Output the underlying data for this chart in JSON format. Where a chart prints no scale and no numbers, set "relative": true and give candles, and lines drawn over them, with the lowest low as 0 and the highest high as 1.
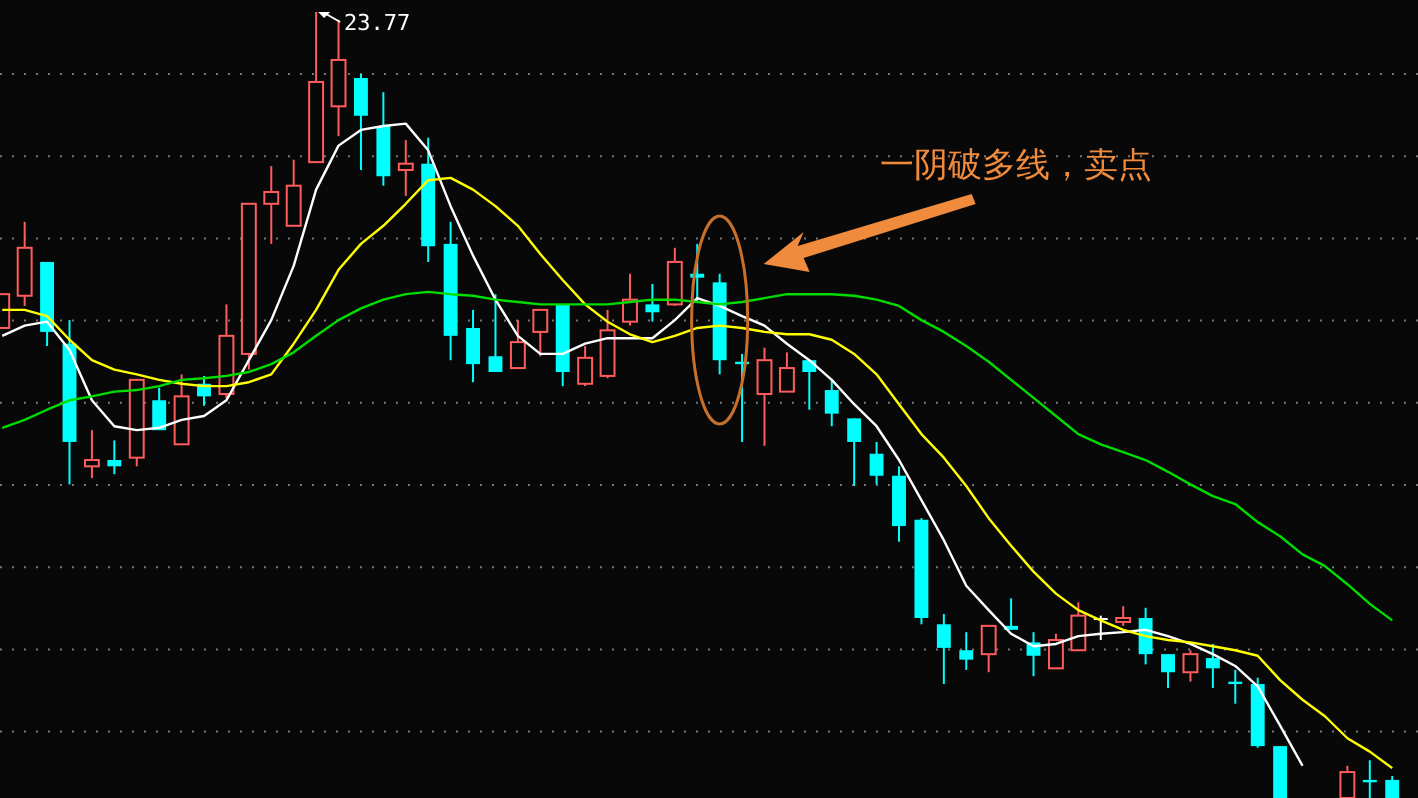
{
  "chart_data": {
    "type": "candlestick",
    "relative": true,
    "grid": "y",
    "marker": "none",
    "categories": [
      null,
      null,
      null,
      null,
      null,
      null,
      null,
      null,
      null,
      null,
      null,
      null,
      null,
      null,
      null,
      null,
      null,
      null,
      null,
      null,
      null,
      null,
      null,
      null,
      null,
      null,
      null,
      null,
      null,
      null,
      null,
      null,
      null,
      null,
      null,
      null,
      null,
      null,
      null,
      null,
      null,
      null,
      null,
      null,
      null,
      null,
      null,
      null,
      null,
      null,
      null,
      null,
      null,
      null,
      null,
      null,
      null,
      null,
      null,
      null,
      null,
      null,
      null
    ],
    "colors": [
      "#ff5c5c",
      "#ff5c5c",
      "#00ffff",
      "#00ffff",
      "#ff5c5c",
      "#00ffff",
      "#ff5c5c",
      "#00ffff",
      "#ff5c5c",
      "#00ffff",
      "#ff5c5c",
      "#ff5c5c",
      "#ff5c5c",
      "#ff5c5c",
      "#ff5c5c",
      "#ff5c5c",
      "#00ffff",
      "#00ffff",
      "#ff5c5c",
      "#00ffff",
      "#00ffff",
      "#00ffff",
      "#00ffff",
      "#ff5c5c",
      "#ff5c5c",
      "#00ffff",
      "#ff5c5c",
      "#ff5c5c",
      "#ff5c5c",
      "#00ffff",
      "#ff5c5c",
      "#00ffff",
      "#00ffff",
      "#00ffff",
      "#ff5c5c",
      "#ff5c5c",
      "#00ffff",
      "#00ffff",
      "#00ffff",
      "#00ffff",
      "#00ffff",
      "#00ffff",
      "#00ffff",
      "#00ffff",
      "#ff5c5c",
      "#00ffff",
      "#00ffff",
      "#ff5c5c",
      "#ff5c5c",
      "#ffffff",
      "#ff5c5c",
      "#00ffff",
      "#00ffff",
      "#ff5c5c",
      "#00ffff",
      "#00ffff",
      "#00ffff",
      "#00ffff",
      null,
      null,
      "#ff5c5c",
      "#00ffff",
      "#00ffff"
    ],
    "ohlc": [
      [
        0.598,
        0.641,
        0.598,
        0.641
      ],
      [
        0.639,
        0.733,
        0.626,
        0.7
      ],
      [
        0.682,
        0.682,
        0.575,
        0.593
      ],
      [
        0.578,
        0.608,
        0.399,
        0.453
      ],
      [
        0.422,
        0.468,
        0.407,
        0.43
      ],
      [
        0.43,
        0.455,
        0.412,
        0.422
      ],
      [
        0.433,
        0.532,
        0.422,
        0.532
      ],
      [
        0.506,
        0.522,
        0.468,
        0.468
      ],
      [
        0.45,
        0.539,
        0.45,
        0.511
      ],
      [
        0.527,
        0.537,
        0.499,
        0.511
      ],
      [
        0.514,
        0.628,
        0.509,
        0.588
      ],
      [
        0.565,
        0.756,
        0.545,
        0.756
      ],
      [
        0.756,
        0.804,
        0.705,
        0.771
      ],
      [
        0.728,
        0.812,
        0.728,
        0.779
      ],
      [
        0.809,
        1,
        0.809,
        0.911
      ],
      [
        0.88,
        0.99,
        0.842,
        0.939
      ],
      [
        0.916,
        0.921,
        0.799,
        0.868
      ],
      [
        0.855,
        0.898,
        0.779,
        0.791
      ],
      [
        0.799,
        0.837,
        0.766,
        0.807
      ],
      [
        0.807,
        0.84,
        0.682,
        0.702
      ],
      [
        0.705,
        0.733,
        0.557,
        0.588
      ],
      [
        0.598,
        0.621,
        0.529,
        0.552
      ],
      [
        0.562,
        0.641,
        0.542,
        0.542
      ],
      [
        0.547,
        0.608,
        0.547,
        0.58
      ],
      [
        0.593,
        0.621,
        0.562,
        0.621
      ],
      [
        0.628,
        0.628,
        0.524,
        0.542
      ],
      [
        0.527,
        0.575,
        0.524,
        0.56
      ],
      [
        0.537,
        0.621,
        0.534,
        0.595
      ],
      [
        0.606,
        0.667,
        0.601,
        0.634
      ],
      [
        0.628,
        0.654,
        0.606,
        0.618
      ],
      [
        0.628,
        0.7,
        0.626,
        0.682
      ],
      [
        0.667,
        0.705,
        0.631,
        0.662
      ],
      [
        0.656,
        0.667,
        0.539,
        0.557
      ],
      [
        0.555,
        0.565,
        0.453,
        0.552
      ],
      [
        0.514,
        0.573,
        0.448,
        0.557
      ],
      [
        0.517,
        0.567,
        0.517,
        0.547
      ],
      [
        0.557,
        0.557,
        0.494,
        0.542
      ],
      [
        0.519,
        0.532,
        0.473,
        0.489
      ],
      [
        0.483,
        0.483,
        0.397,
        0.453
      ],
      [
        0.438,
        0.453,
        0.399,
        0.41
      ],
      [
        0.41,
        0.422,
        0.326,
        0.346
      ],
      [
        0.354,
        0.356,
        0.221,
        0.229
      ],
      [
        0.221,
        0.234,
        0.145,
        0.191
      ],
      [
        0.188,
        0.211,
        0.163,
        0.176
      ],
      [
        0.183,
        0.219,
        0.16,
        0.219
      ],
      [
        0.219,
        0.254,
        0.214,
        0.214
      ],
      [
        0.198,
        0.211,
        0.155,
        0.181
      ],
      [
        0.165,
        0.209,
        0.165,
        0.201
      ],
      [
        0.188,
        0.249,
        0.188,
        0.232
      ],
      [
        0.229,
        0.232,
        0.201,
        0.229
      ],
      [
        0.224,
        0.244,
        0.219,
        0.229
      ],
      [
        0.229,
        0.242,
        0.17,
        0.183
      ],
      [
        0.183,
        0.183,
        0.14,
        0.16
      ],
      [
        0.16,
        0.188,
        0.148,
        0.183
      ],
      [
        0.178,
        0.196,
        0.14,
        0.165
      ],
      [
        0.148,
        0.163,
        0.12,
        0.145
      ],
      [
        0.145,
        0.153,
        0.064,
        0.066
      ],
      [
        0.066,
        0.066,
        0,
        0
      ],
      null,
      null,
      [
        0,
        0.041,
        0,
        0.033
      ],
      [
        0.023,
        0.048,
        0,
        0.02
      ],
      [
        0.023,
        0.028,
        0,
        0
      ]
    ],
    "series": [
      {
        "type": "line",
        "color": "#ffffff",
        "values": [
          0.588,
          0.601,
          0.606,
          0.57,
          0.506,
          0.473,
          0.468,
          0.471,
          0.481,
          0.486,
          0.506,
          0.557,
          0.608,
          0.677,
          0.774,
          0.83,
          0.85,
          0.855,
          0.858,
          0.824,
          0.753,
          0.69,
          0.634,
          0.588,
          0.565,
          0.565,
          0.578,
          0.585,
          0.585,
          0.585,
          0.608,
          0.636,
          0.626,
          0.613,
          0.601,
          0.578,
          0.557,
          0.532,
          0.501,
          0.473,
          0.43,
          0.379,
          0.328,
          0.27,
          0.239,
          0.209,
          0.193,
          0.196,
          0.206,
          0.209,
          0.211,
          0.214,
          0.206,
          0.196,
          0.183,
          0.168,
          0.142,
          0.092,
          0.041,
          null,
          null,
          null,
          null
        ]
      },
      {
        "type": "line",
        "color": "#ffff00",
        "values": [
          0.621,
          0.621,
          0.613,
          0.583,
          0.557,
          0.545,
          0.539,
          0.532,
          0.527,
          0.524,
          0.524,
          0.529,
          0.539,
          0.578,
          0.621,
          0.672,
          0.705,
          0.728,
          0.756,
          0.786,
          0.789,
          0.774,
          0.753,
          0.728,
          0.692,
          0.659,
          0.628,
          0.606,
          0.59,
          0.58,
          0.588,
          0.598,
          0.601,
          0.598,
          0.593,
          0.59,
          0.59,
          0.583,
          0.565,
          0.539,
          0.501,
          0.463,
          0.433,
          0.397,
          0.356,
          0.321,
          0.288,
          0.26,
          0.239,
          0.226,
          0.214,
          0.206,
          0.201,
          0.198,
          0.193,
          0.188,
          0.181,
          0.15,
          0.125,
          0.104,
          0.076,
          0.059,
          0.038
        ]
      },
      {
        "type": "line",
        "color": "#00dd00",
        "values": [
          0.471,
          0.481,
          0.494,
          0.506,
          0.511,
          0.517,
          0.519,
          0.524,
          0.532,
          0.534,
          0.537,
          0.542,
          0.552,
          0.567,
          0.588,
          0.608,
          0.623,
          0.634,
          0.641,
          0.644,
          0.641,
          0.639,
          0.634,
          0.631,
          0.628,
          0.628,
          0.628,
          0.628,
          0.631,
          0.634,
          0.634,
          0.631,
          0.628,
          0.631,
          0.636,
          0.641,
          0.641,
          0.641,
          0.639,
          0.634,
          0.626,
          0.608,
          0.593,
          0.575,
          0.555,
          0.532,
          0.509,
          0.486,
          0.463,
          0.45,
          0.44,
          0.43,
          0.415,
          0.399,
          0.384,
          0.374,
          0.351,
          0.333,
          0.31,
          0.295,
          0.272,
          0.247,
          0.226
        ]
      }
    ],
    "annotations": [
      "23.77",
      "一阴破多线，卖点"
    ]
  }
}
